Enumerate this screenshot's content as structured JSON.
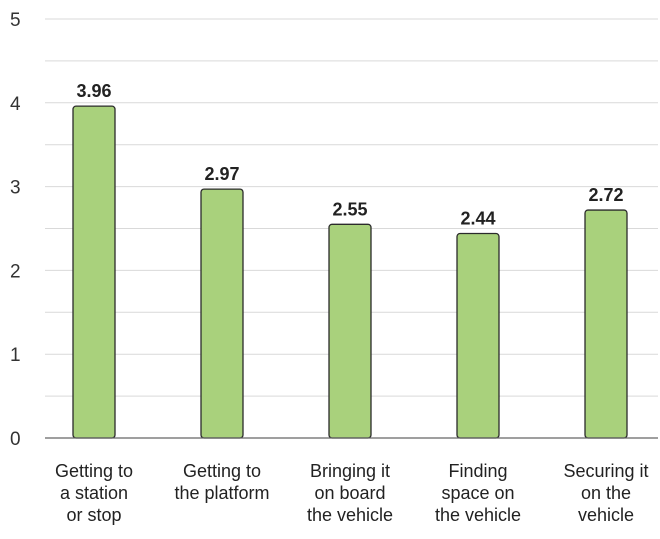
{
  "chart_data": {
    "type": "bar",
    "categories": [
      [
        "Getting to",
        "a station",
        "or stop"
      ],
      [
        "Getting to",
        "the platform"
      ],
      [
        "Bringing it",
        "on board",
        "the vehicle"
      ],
      [
        "Finding",
        "space on",
        "the vehicle"
      ],
      [
        "Securing it",
        "on the",
        "vehicle"
      ]
    ],
    "values": [
      3.96,
      2.97,
      2.55,
      2.44,
      2.72
    ],
    "data_labels": [
      "3.96",
      "2.97",
      "2.55",
      "2.44",
      "2.72"
    ],
    "ylim": [
      0,
      5
    ],
    "yticks": [
      0,
      1,
      2,
      3,
      4,
      5
    ],
    "ytick_labels": [
      "0",
      "1",
      "2",
      "3",
      "4",
      "5"
    ],
    "minor_grid_step": 0.5,
    "grid": true,
    "legend": "none",
    "bar_color": "#a9d17c",
    "bar_outline_color": "#2b2b2b",
    "grid_color": "#d9d9d9"
  }
}
